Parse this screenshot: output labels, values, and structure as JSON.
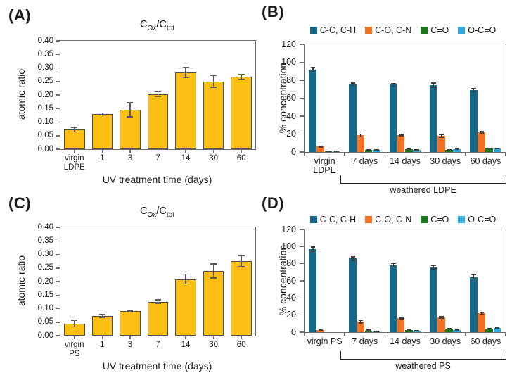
{
  "chart_data": [
    {
      "id": "A",
      "panel_label": "(A)",
      "type": "bar",
      "title": {
        "c1": "C",
        "s1": "Ox",
        "c2": "/C",
        "s2": "tot"
      },
      "ylabel": "atomic ratio",
      "xlabel": "UV treatment time (days)",
      "ylim": [
        0,
        0.4
      ],
      "ytick_step": 0.05,
      "ytick_decimals": 2,
      "categories": [
        "virgin\nLDPE",
        "1",
        "3",
        "7",
        "14",
        "30",
        "60"
      ],
      "values": [
        0.072,
        0.13,
        0.145,
        0.203,
        0.283,
        0.25,
        0.268
      ],
      "errors": [
        0.008,
        0.004,
        0.026,
        0.009,
        0.019,
        0.022,
        0.009
      ],
      "bar_color": "#FCC015",
      "bar_border": "#4d4d4d",
      "error_color": "#5a5a5a"
    },
    {
      "id": "B",
      "panel_label": "(B)",
      "type": "grouped-bar",
      "ylabel": "% concentration",
      "ylim": [
        0,
        120
      ],
      "ytick_step": 20,
      "ytick_decimals": 0,
      "categories": [
        "virgin\nLDPE",
        "7 days",
        "14 days",
        "30 days",
        "60 days"
      ],
      "series": [
        {
          "name": "C-C, C-H",
          "color": "#156A8C",
          "values": [
            92,
            75.5,
            75,
            74.5,
            69
          ],
          "errors": [
            2,
            1.5,
            1.5,
            2.5,
            2
          ]
        },
        {
          "name": "C-O, C-N",
          "color": "#F27122",
          "values": [
            6,
            18.5,
            19,
            18,
            22
          ],
          "errors": [
            0.6,
            1.5,
            0.8,
            1.5,
            1
          ]
        },
        {
          "name": "C=O",
          "color": "#1A761F",
          "values": [
            0.8,
            2.5,
            3,
            2.5,
            4
          ],
          "errors": [
            0.2,
            0.3,
            0.3,
            0.3,
            0.3
          ]
        },
        {
          "name": "O-C=O",
          "color": "#2FA8DC",
          "values": [
            0.6,
            2.5,
            2,
            3.5,
            4
          ],
          "errors": [
            0.2,
            0.3,
            0.3,
            0.3,
            0.3
          ]
        }
      ],
      "error_color": "#3c3c3c",
      "bracket": {
        "label": "weathered LDPE",
        "from_category": 1
      }
    },
    {
      "id": "C",
      "panel_label": "(C)",
      "type": "bar",
      "title": {
        "c1": "C",
        "s1": "Ox",
        "c2": "/C",
        "s2": "tot"
      },
      "ylabel": "atomic ratio",
      "xlabel": "UV treatment time (days)",
      "ylim": [
        0,
        0.4
      ],
      "ytick_step": 0.05,
      "ytick_decimals": 2,
      "categories": [
        "virgin\nPS",
        "1",
        "3",
        "7",
        "14",
        "30",
        "60"
      ],
      "values": [
        0.045,
        0.073,
        0.09,
        0.126,
        0.209,
        0.239,
        0.276
      ],
      "errors": [
        0.012,
        0.005,
        0.003,
        0.007,
        0.018,
        0.026,
        0.02
      ],
      "bar_color": "#FCC015",
      "bar_border": "#4d4d4d",
      "error_color": "#5a5a5a"
    },
    {
      "id": "D",
      "panel_label": "(D)",
      "type": "grouped-bar",
      "ylabel": "% concentration",
      "ylim": [
        0,
        120
      ],
      "ytick_step": 20,
      "ytick_decimals": 0,
      "categories": [
        "virgin PS",
        "7 days",
        "14 days",
        "30 days",
        "60 days"
      ],
      "series": [
        {
          "name": "C-C, C-H",
          "color": "#156A8C",
          "values": [
            97,
            86,
            78,
            76,
            64.5
          ],
          "errors": [
            2.5,
            2,
            2,
            2,
            2.5
          ]
        },
        {
          "name": "C-O, C-N",
          "color": "#F27122",
          "values": [
            2.5,
            12,
            16.5,
            17.5,
            22
          ],
          "errors": [
            0.4,
            1.5,
            0.8,
            1,
            1
          ]
        },
        {
          "name": "C=O",
          "color": "#1A761F",
          "values": [
            0,
            2,
            2.8,
            4,
            4
          ],
          "errors": [
            0,
            0.3,
            0.3,
            0.4,
            0.3
          ]
        },
        {
          "name": "O-C=O",
          "color": "#2FA8DC",
          "values": [
            0,
            0.5,
            1.5,
            2.5,
            5
          ],
          "errors": [
            0,
            0.2,
            0.3,
            0.4,
            0.4
          ]
        }
      ],
      "error_color": "#3c3c3c",
      "bracket": {
        "label": "weathered PS",
        "from_category": 1
      }
    }
  ]
}
